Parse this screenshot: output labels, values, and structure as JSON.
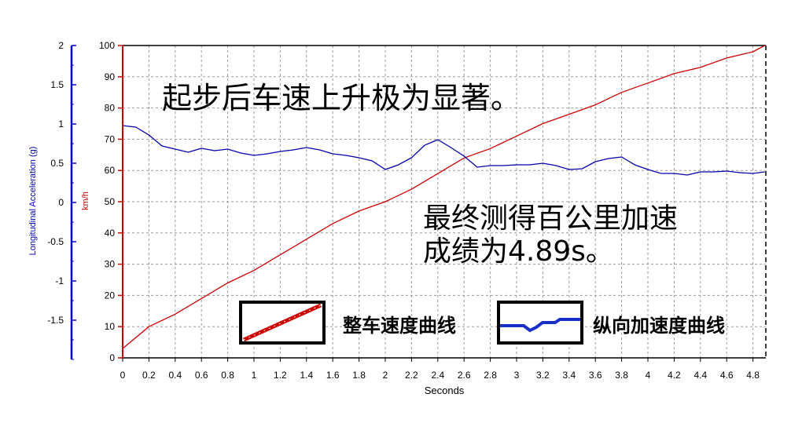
{
  "chart_data": {
    "type": "line",
    "xlabel": "Seconds",
    "ylabel_left": "Longitudinal Acceleration (g)",
    "ylabel_right": "km/h",
    "xlim": [
      0,
      4.9
    ],
    "x_ticks": [
      "0",
      "0.2",
      "0.4",
      "0.6",
      "0.8",
      "1",
      "1.2",
      "1.4",
      "1.6",
      "1.8",
      "2",
      "2.2",
      "2.4",
      "2.6",
      "2.8",
      "3",
      "3.2",
      "3.4",
      "3.6",
      "3.8",
      "4",
      "4.2",
      "4.4",
      "4.6",
      "4.8"
    ],
    "acc_ylim": [
      -2,
      2
    ],
    "acc_ticks": [
      "2",
      "1.5",
      "1",
      "0.5",
      "0",
      "-0.5",
      "-1",
      "-1.5"
    ],
    "speed_ylim": [
      0,
      100
    ],
    "speed_ticks": [
      "100",
      "90",
      "80",
      "70",
      "60",
      "50",
      "40",
      "30",
      "20",
      "10",
      "0"
    ],
    "grid": true,
    "colors": {
      "speed": "#cc0000",
      "acceleration": "#0000aa",
      "left_axis": "#0000cc",
      "right_axis": "#cc0000"
    },
    "series": [
      {
        "name": "整车速度曲线",
        "axis": "speed",
        "x": [
          0,
          0.2,
          0.4,
          0.6,
          0.8,
          1.0,
          1.2,
          1.4,
          1.6,
          1.8,
          2.0,
          2.2,
          2.4,
          2.6,
          2.8,
          3.0,
          3.2,
          3.4,
          3.6,
          3.8,
          4.0,
          4.2,
          4.4,
          4.6,
          4.8,
          4.89
        ],
        "values": [
          3,
          10,
          14,
          19,
          24,
          28,
          33,
          38,
          43,
          47,
          50,
          54,
          59,
          64,
          67,
          71,
          75,
          78,
          81,
          85,
          88,
          91,
          93,
          96,
          98,
          100
        ]
      },
      {
        "name": "纵向加速度曲线",
        "axis": "acceleration",
        "x": [
          0,
          0.1,
          0.2,
          0.3,
          0.4,
          0.5,
          0.6,
          0.7,
          0.8,
          0.9,
          1.0,
          1.1,
          1.2,
          1.3,
          1.4,
          1.5,
          1.6,
          1.7,
          1.8,
          1.9,
          2.0,
          2.1,
          2.2,
          2.3,
          2.4,
          2.5,
          2.6,
          2.7,
          2.8,
          2.9,
          3.0,
          3.1,
          3.2,
          3.3,
          3.4,
          3.5,
          3.6,
          3.7,
          3.8,
          3.9,
          4.0,
          4.1,
          4.2,
          4.3,
          4.4,
          4.5,
          4.6,
          4.7,
          4.8,
          4.89
        ],
        "values": [
          0.98,
          0.96,
          0.86,
          0.72,
          0.68,
          0.64,
          0.69,
          0.66,
          0.68,
          0.63,
          0.6,
          0.62,
          0.65,
          0.67,
          0.7,
          0.67,
          0.62,
          0.6,
          0.57,
          0.53,
          0.42,
          0.48,
          0.57,
          0.73,
          0.8,
          0.7,
          0.59,
          0.45,
          0.47,
          0.47,
          0.48,
          0.48,
          0.5,
          0.47,
          0.42,
          0.43,
          0.52,
          0.56,
          0.58,
          0.48,
          0.42,
          0.37,
          0.37,
          0.35,
          0.39,
          0.39,
          0.4,
          0.38,
          0.37,
          0.39
        ]
      }
    ]
  },
  "annotations": {
    "top": "起步后车速上升极为显著。",
    "bottom_line1": "最终测得百公里加速",
    "bottom_line2": "成绩为4.89s。"
  },
  "legend": {
    "speed_label": "整车速度曲线",
    "acc_label": "纵向加速度曲线"
  }
}
